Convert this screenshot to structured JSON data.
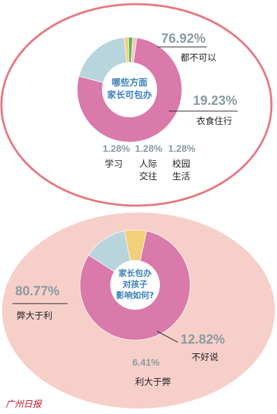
{
  "colors": {
    "magenta": "#d97aaa",
    "lightblue": "#b8d4dc",
    "green": "#5fb64a",
    "yellow": "#f2cf7a",
    "pink": "#f6c3c8",
    "salmon": "#f7cfc9",
    "outer_ring": "#e67880",
    "text_pct": "#8a9aa3",
    "text_center": "#3a7fb8",
    "logo": "#c8102e"
  },
  "chart_data": [
    {
      "type": "pie",
      "title": "哪些方面家长可包办",
      "center_lines": [
        "哪些方面",
        "家长可包办"
      ],
      "slices": [
        {
          "label": "都不可以",
          "value": 76.92,
          "value_text": "76.92%",
          "label_lines": [
            "都不可以"
          ],
          "color": "#d97aaa"
        },
        {
          "label": "衣食住行",
          "value": 19.23,
          "value_text": "19.23%",
          "label_lines": [
            "衣食住行"
          ],
          "color": "#b8d4dc"
        },
        {
          "label": "校园生活",
          "value": 1.28,
          "value_text": "1.28%",
          "label_lines": [
            "校园",
            "生活"
          ],
          "color": "#f2cf7a"
        },
        {
          "label": "人际交往",
          "value": 1.28,
          "value_text": "1.28%",
          "label_lines": [
            "人际",
            "交往"
          ],
          "color": "#5fb64a"
        },
        {
          "label": "学习",
          "value": 1.28,
          "value_text": "1.28%",
          "label_lines": [
            "学习"
          ],
          "color": "#f6c3c8"
        }
      ]
    },
    {
      "type": "pie",
      "title": "家长包办对孩子影响如何?",
      "center_lines": [
        "家长包办",
        "对孩子",
        "影响如何?"
      ],
      "slices": [
        {
          "label": "弊大于利",
          "value": 80.77,
          "value_text": "80.77%",
          "label_lines": [
            "弊大于利"
          ],
          "color": "#d97aaa"
        },
        {
          "label": "不好说",
          "value": 12.82,
          "value_text": "12.82%",
          "label_lines": [
            "不好说"
          ],
          "color": "#b8d4dc"
        },
        {
          "label": "利大于弊",
          "value": 6.41,
          "value_text": "6.41%",
          "label_lines": [
            "利大于弊"
          ],
          "color": "#f2cf7a"
        }
      ]
    }
  ],
  "logo_text": "广州日报"
}
